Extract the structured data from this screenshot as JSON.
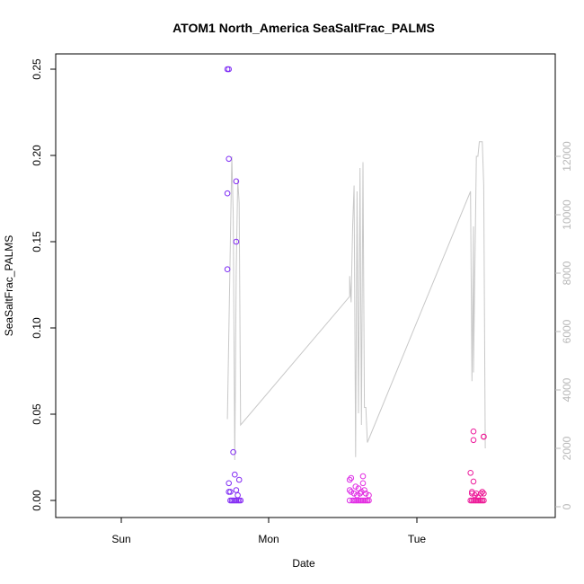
{
  "chart_data": {
    "type": "scatter",
    "title": "ATOM1 North_America SeaSaltFrac_PALMS",
    "xlabel": "Date",
    "ylabel": "SeaSaltFrac_PALMS",
    "x_ticks": [
      "Sun",
      "Mon",
      "Tue"
    ],
    "ylim": [
      0,
      0.25
    ],
    "y_ticks": [
      "0.00",
      "0.05",
      "0.10",
      "0.15",
      "0.20",
      "0.25"
    ],
    "y2lim": [
      0,
      12000
    ],
    "y2_ticks": [
      "0",
      "2000",
      "4000",
      "6000",
      "8000",
      "10000",
      "12000"
    ],
    "colors": {
      "points_start": "#7b2cf5",
      "points_mid": "#e22ee6",
      "points_end": "#ee1890",
      "altitude_line": "#c8c8c8"
    },
    "scatter_points": [
      {
        "x": 0.72,
        "y": 0.25
      },
      {
        "x": 0.73,
        "y": 0.25
      },
      {
        "x": 0.73,
        "y": 0.198
      },
      {
        "x": 0.72,
        "y": 0.178
      },
      {
        "x": 0.72,
        "y": 0.134
      },
      {
        "x": 0.78,
        "y": 0.185
      },
      {
        "x": 0.78,
        "y": 0.15
      },
      {
        "x": 0.76,
        "y": 0.028
      },
      {
        "x": 0.77,
        "y": 0.015
      },
      {
        "x": 0.73,
        "y": 0.01
      },
      {
        "x": 0.8,
        "y": 0.012
      },
      {
        "x": 0.73,
        "y": 0.005
      },
      {
        "x": 0.74,
        "y": 0.005
      },
      {
        "x": 0.78,
        "y": 0.006
      },
      {
        "x": 0.79,
        "y": 0.003
      },
      {
        "x": 0.74,
        "y": 0.0
      },
      {
        "x": 0.75,
        "y": 0.0
      },
      {
        "x": 0.76,
        "y": 0.0
      },
      {
        "x": 0.77,
        "y": 0.0
      },
      {
        "x": 0.78,
        "y": 0.0
      },
      {
        "x": 0.79,
        "y": 0.0
      },
      {
        "x": 0.8,
        "y": 0.0
      },
      {
        "x": 0.81,
        "y": 0.0
      },
      {
        "x": 1.55,
        "y": 0.012
      },
      {
        "x": 1.56,
        "y": 0.013
      },
      {
        "x": 1.55,
        "y": 0.006
      },
      {
        "x": 1.56,
        "y": 0.005
      },
      {
        "x": 1.58,
        "y": 0.004
      },
      {
        "x": 1.59,
        "y": 0.008
      },
      {
        "x": 1.6,
        "y": 0.003
      },
      {
        "x": 1.61,
        "y": 0.007
      },
      {
        "x": 1.62,
        "y": 0.004
      },
      {
        "x": 1.63,
        "y": 0.005
      },
      {
        "x": 1.64,
        "y": 0.01
      },
      {
        "x": 1.64,
        "y": 0.014
      },
      {
        "x": 1.65,
        "y": 0.006
      },
      {
        "x": 1.66,
        "y": 0.004
      },
      {
        "x": 1.68,
        "y": 0.003
      },
      {
        "x": 1.55,
        "y": 0.0
      },
      {
        "x": 1.57,
        "y": 0.0
      },
      {
        "x": 1.58,
        "y": 0.0
      },
      {
        "x": 1.59,
        "y": 0.0
      },
      {
        "x": 1.6,
        "y": 0.0
      },
      {
        "x": 1.61,
        "y": 0.0
      },
      {
        "x": 1.62,
        "y": 0.0
      },
      {
        "x": 1.63,
        "y": 0.0
      },
      {
        "x": 1.64,
        "y": 0.0
      },
      {
        "x": 1.65,
        "y": 0.0
      },
      {
        "x": 1.66,
        "y": 0.0
      },
      {
        "x": 1.67,
        "y": 0.0
      },
      {
        "x": 1.68,
        "y": 0.0
      },
      {
        "x": 2.37,
        "y": 0.016
      },
      {
        "x": 2.38,
        "y": 0.005
      },
      {
        "x": 2.38,
        "y": 0.004
      },
      {
        "x": 2.39,
        "y": 0.04
      },
      {
        "x": 2.39,
        "y": 0.035
      },
      {
        "x": 2.39,
        "y": 0.011
      },
      {
        "x": 2.4,
        "y": 0.003
      },
      {
        "x": 2.41,
        "y": 0.004
      },
      {
        "x": 2.42,
        "y": 0.002
      },
      {
        "x": 2.44,
        "y": 0.004
      },
      {
        "x": 2.45,
        "y": 0.005
      },
      {
        "x": 2.46,
        "y": 0.037
      },
      {
        "x": 2.46,
        "y": 0.037
      },
      {
        "x": 2.46,
        "y": 0.004
      },
      {
        "x": 2.37,
        "y": 0.0
      },
      {
        "x": 2.38,
        "y": 0.0
      },
      {
        "x": 2.39,
        "y": 0.0
      },
      {
        "x": 2.4,
        "y": 0.0
      },
      {
        "x": 2.41,
        "y": 0.0
      },
      {
        "x": 2.42,
        "y": 0.0
      },
      {
        "x": 2.43,
        "y": 0.0
      },
      {
        "x": 2.44,
        "y": 0.0
      },
      {
        "x": 2.45,
        "y": 0.0
      },
      {
        "x": 2.46,
        "y": 0.0
      }
    ],
    "altitude_line": [
      [
        0.72,
        3000
      ],
      [
        0.75,
        12000
      ],
      [
        0.76,
        10000
      ],
      [
        0.77,
        1600
      ],
      [
        0.78,
        8000
      ],
      [
        0.79,
        11200
      ],
      [
        0.8,
        10400
      ],
      [
        0.81,
        2800
      ],
      [
        1.55,
        7200
      ],
      [
        1.55,
        7900
      ],
      [
        1.56,
        7000
      ],
      [
        1.57,
        9600
      ],
      [
        1.58,
        11000
      ],
      [
        1.59,
        1700
      ],
      [
        1.6,
        10800
      ],
      [
        1.61,
        3200
      ],
      [
        1.62,
        11600
      ],
      [
        1.63,
        2800
      ],
      [
        1.64,
        11800
      ],
      [
        1.65,
        3400
      ],
      [
        1.66,
        3400
      ],
      [
        1.67,
        2200
      ],
      [
        2.37,
        10800
      ],
      [
        2.38,
        4300
      ],
      [
        2.39,
        9600
      ],
      [
        2.39,
        4600
      ],
      [
        2.41,
        12000
      ],
      [
        2.42,
        12000
      ],
      [
        2.43,
        12500
      ],
      [
        2.45,
        12500
      ],
      [
        2.46,
        11000
      ],
      [
        2.47,
        2000
      ]
    ]
  }
}
